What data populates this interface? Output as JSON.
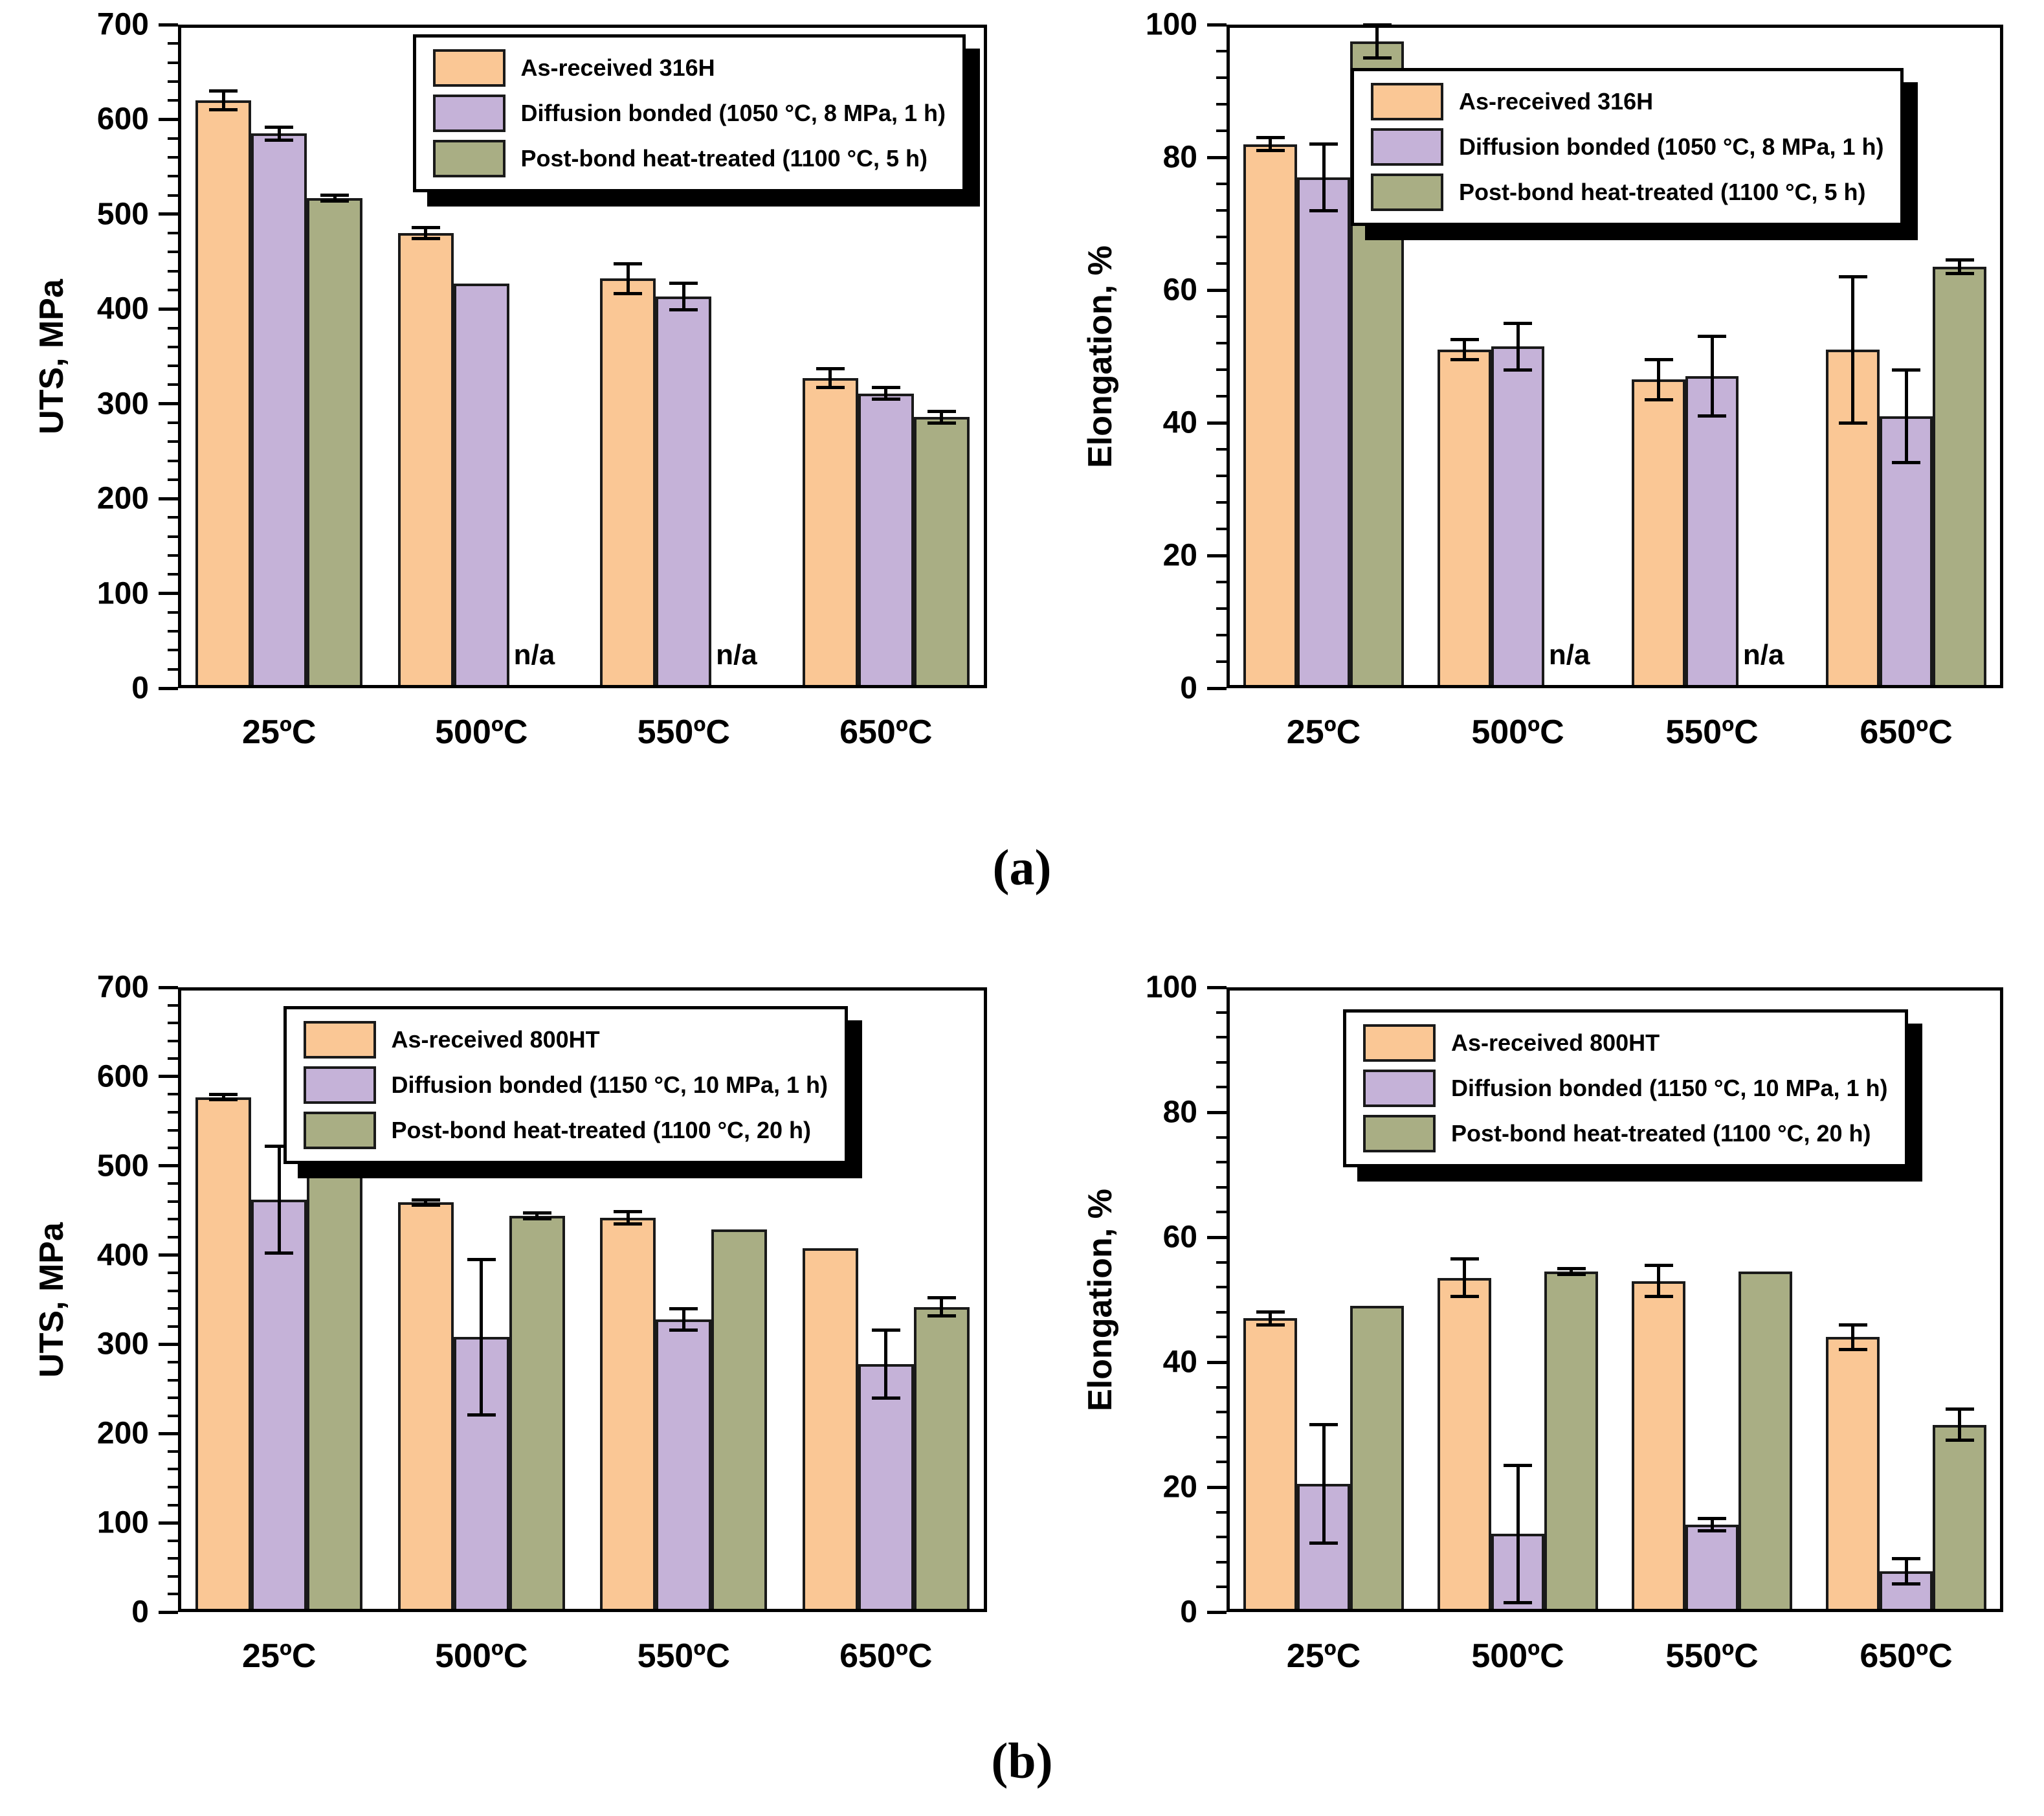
{
  "captions": {
    "a": "(a)",
    "b": "(b)"
  },
  "colors": {
    "orange": "#FAC795",
    "purple": "#C5B2D8",
    "green": "#A9AE84",
    "bar_border": "#1a1a1a",
    "axis": "#000000"
  },
  "chart_data": [
    {
      "id": "uts-316h",
      "type": "bar",
      "panel": "a",
      "title": "",
      "xlabel": "",
      "ylabel": "UTS, MPa",
      "ylim": [
        0,
        700
      ],
      "ytick_step": 100,
      "minor_per_major": 5,
      "grid": false,
      "legend_position": "upper-left-inside",
      "legend_pos": {
        "left_pct": 29,
        "top_pct": 1.5
      },
      "na_label": "n/a",
      "categories": [
        "25ºC",
        "500ºC",
        "550ºC",
        "650ºC"
      ],
      "series": [
        {
          "name": "As-received 316H",
          "color_key": "orange",
          "values": [
            620,
            480,
            432,
            327
          ],
          "errors": [
            10,
            6,
            16,
            10
          ]
        },
        {
          "name": "Diffusion bonded (1050 °C, 8 MPa, 1 h)",
          "color_key": "purple",
          "values": [
            585,
            427,
            413,
            311
          ],
          "errors": [
            7,
            0,
            14,
            6
          ]
        },
        {
          "name": "Post-bond heat-treated (1100 °C, 5 h)",
          "color_key": "green",
          "values": [
            517,
            null,
            null,
            286
          ],
          "errors": [
            3,
            null,
            null,
            6
          ]
        }
      ]
    },
    {
      "id": "elongation-316h",
      "type": "bar",
      "panel": "a",
      "title": "",
      "xlabel": "",
      "ylabel": "Elongation, %",
      "ylim": [
        0,
        100
      ],
      "ytick_step": 20,
      "minor_per_major": 5,
      "grid": false,
      "legend_position": "upper-left-inside",
      "legend_pos": {
        "left_pct": 16,
        "top_pct": 6.5
      },
      "na_label": "n/a",
      "categories": [
        "25ºC",
        "500ºC",
        "550ºC",
        "650ºC"
      ],
      "series": [
        {
          "name": "As-received 316H",
          "color_key": "orange",
          "values": [
            82,
            51,
            46.5,
            51
          ],
          "errors": [
            1,
            1.5,
            3,
            11
          ]
        },
        {
          "name": "Diffusion bonded (1050 °C, 8 MPa, 1 h)",
          "color_key": "purple",
          "values": [
            77,
            51.5,
            47,
            41
          ],
          "errors": [
            5,
            3.5,
            6,
            7
          ]
        },
        {
          "name": "Post-bond heat-treated (1100 °C, 5 h)",
          "color_key": "green",
          "values": [
            97.5,
            null,
            null,
            63.5
          ],
          "errors": [
            2.5,
            null,
            null,
            1
          ]
        }
      ]
    },
    {
      "id": "uts-800ht",
      "type": "bar",
      "panel": "b",
      "title": "",
      "xlabel": "",
      "ylabel": "UTS, MPa",
      "ylim": [
        0,
        700
      ],
      "ytick_step": 100,
      "minor_per_major": 5,
      "grid": false,
      "legend_position": "upper-left-inside",
      "legend_pos": {
        "left_pct": 13,
        "top_pct": 3
      },
      "na_label": "n/a",
      "categories": [
        "25ºC",
        "500ºC",
        "550ºC",
        "650ºC"
      ],
      "series": [
        {
          "name": "As-received 800HT",
          "color_key": "orange",
          "values": [
            577,
            459,
            442,
            408
          ],
          "errors": [
            3,
            3,
            7,
            0
          ]
        },
        {
          "name": "Diffusion bonded (1150 °C, 10 MPa, 1 h)",
          "color_key": "purple",
          "values": [
            462,
            308,
            328,
            278
          ],
          "errors": [
            60,
            87,
            12,
            38
          ]
        },
        {
          "name": "Post-bond heat-treated (1100 °C, 20 h)",
          "color_key": "green",
          "values": [
            505,
            444,
            429,
            342
          ],
          "errors": [
            0,
            3,
            0,
            10
          ]
        }
      ]
    },
    {
      "id": "elongation-800ht",
      "type": "bar",
      "panel": "b",
      "title": "",
      "xlabel": "",
      "ylabel": "Elongation, %",
      "ylim": [
        0,
        100
      ],
      "ytick_step": 20,
      "minor_per_major": 5,
      "grid": false,
      "legend_position": "upper-left-inside",
      "legend_pos": {
        "left_pct": 15,
        "top_pct": 3.5
      },
      "na_label": "n/a",
      "categories": [
        "25ºC",
        "500ºC",
        "550ºC",
        "650ºC"
      ],
      "series": [
        {
          "name": "As-received 800HT",
          "color_key": "orange",
          "values": [
            47,
            53.5,
            53,
            44
          ],
          "errors": [
            1,
            3,
            2.5,
            2
          ]
        },
        {
          "name": "Diffusion bonded (1150 °C, 10 MPa, 1 h)",
          "color_key": "purple",
          "values": [
            20.5,
            12.5,
            14,
            6.5
          ],
          "errors": [
            9.5,
            11,
            1,
            2
          ]
        },
        {
          "name": "Post-bond heat-treated (1100 °C, 20 h)",
          "color_key": "green",
          "values": [
            49,
            54.5,
            54.5,
            30
          ],
          "errors": [
            0,
            0.5,
            0,
            2.5
          ]
        }
      ]
    }
  ]
}
